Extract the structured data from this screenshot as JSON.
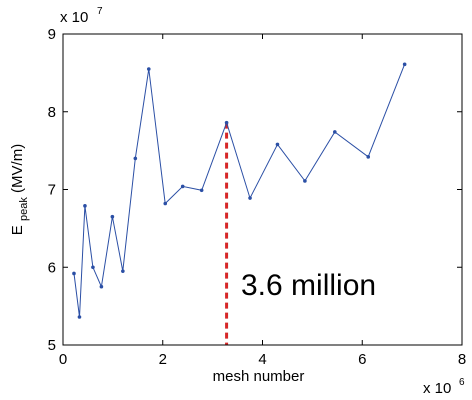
{
  "chart_data": {
    "type": "line",
    "title": "",
    "xlabel": "mesh number",
    "ylabel_main": "E",
    "ylabel_sub": "peak",
    "ylabel_unit": " (MV/m)",
    "xlim": [
      0,
      8
    ],
    "ylim": [
      5,
      9
    ],
    "xticks": [
      0,
      2,
      4,
      6,
      8
    ],
    "yticks": [
      5,
      6,
      7,
      8,
      9
    ],
    "x_multiplier_base": "x 10",
    "x_multiplier_exp": "6",
    "y_multiplier_base": "x 10",
    "y_multiplier_exp": "7",
    "grid": false,
    "series_color": "#2b4fa5",
    "marker_line_color": "#d62728",
    "series": [
      {
        "x": [
          0.22,
          0.33,
          0.44,
          0.6,
          0.77,
          0.99,
          1.2,
          1.45,
          1.72,
          2.05,
          2.4,
          2.78,
          3.28,
          3.75,
          4.3,
          4.85,
          5.45,
          6.12,
          6.85
        ],
        "y": [
          5.92,
          5.36,
          6.79,
          6.0,
          5.75,
          6.65,
          5.95,
          7.4,
          8.55,
          6.82,
          7.04,
          6.99,
          7.86,
          6.89,
          7.58,
          7.11,
          7.74,
          7.42,
          8.61
        ]
      }
    ],
    "marker_x": 3.28,
    "annotation": "3.6 million"
  }
}
